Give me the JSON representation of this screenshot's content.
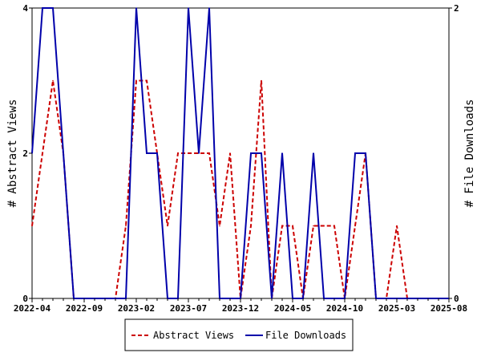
{
  "chart_data": {
    "type": "line",
    "x": [
      "2022-04",
      "2022-05",
      "2022-06",
      "2022-07",
      "2022-08",
      "2022-09",
      "2022-10",
      "2022-11",
      "2022-12",
      "2023-01",
      "2023-02",
      "2023-03",
      "2023-04",
      "2023-05",
      "2023-06",
      "2023-07",
      "2023-08",
      "2023-09",
      "2023-10",
      "2023-11",
      "2023-12",
      "2024-01",
      "2024-02",
      "2024-03",
      "2024-04",
      "2024-05",
      "2024-06",
      "2024-07",
      "2024-08",
      "2024-09",
      "2024-10",
      "2024-11",
      "2024-12",
      "2025-01",
      "2025-02",
      "2025-03",
      "2025-04",
      "2025-05",
      "2025-06",
      "2025-07",
      "2025-08"
    ],
    "x_ticks": [
      "2022-04",
      "2022-09",
      "2023-02",
      "2023-07",
      "2023-12",
      "2024-05",
      "2024-10",
      "2025-03",
      "2025-08"
    ],
    "left_axis": {
      "label": "# Abstract Views",
      "ticks": [
        "0",
        "2",
        "4"
      ],
      "range": [
        0,
        4
      ]
    },
    "right_axis": {
      "label": "# File Downloads",
      "ticks": [
        "0",
        "2"
      ],
      "range": [
        0,
        2
      ]
    },
    "series": [
      {
        "name": "Abstract Views",
        "axis": "left",
        "color": "#cc0000",
        "dash": "dashed",
        "values": [
          1,
          2,
          3,
          2,
          0,
          0,
          0,
          0,
          0,
          1,
          3,
          3,
          2,
          1,
          2,
          2,
          2,
          2,
          1,
          2,
          0,
          1,
          3,
          0,
          1,
          1,
          0,
          1,
          1,
          1,
          0,
          1,
          2,
          0,
          0,
          1,
          0,
          0,
          0,
          0,
          0
        ]
      },
      {
        "name": "File Downloads",
        "axis": "right",
        "color": "#0000aa",
        "dash": "solid",
        "values": [
          1,
          2,
          2,
          1,
          0,
          0,
          0,
          0,
          0,
          0,
          2,
          1,
          1,
          0,
          0,
          2,
          1,
          2,
          0,
          0,
          0,
          1,
          1,
          0,
          1,
          0,
          0,
          1,
          0,
          0,
          0,
          1,
          1,
          0,
          0,
          0,
          0,
          0,
          0,
          0,
          0
        ]
      }
    ],
    "grid": false,
    "legend_position": "bottom-center"
  }
}
